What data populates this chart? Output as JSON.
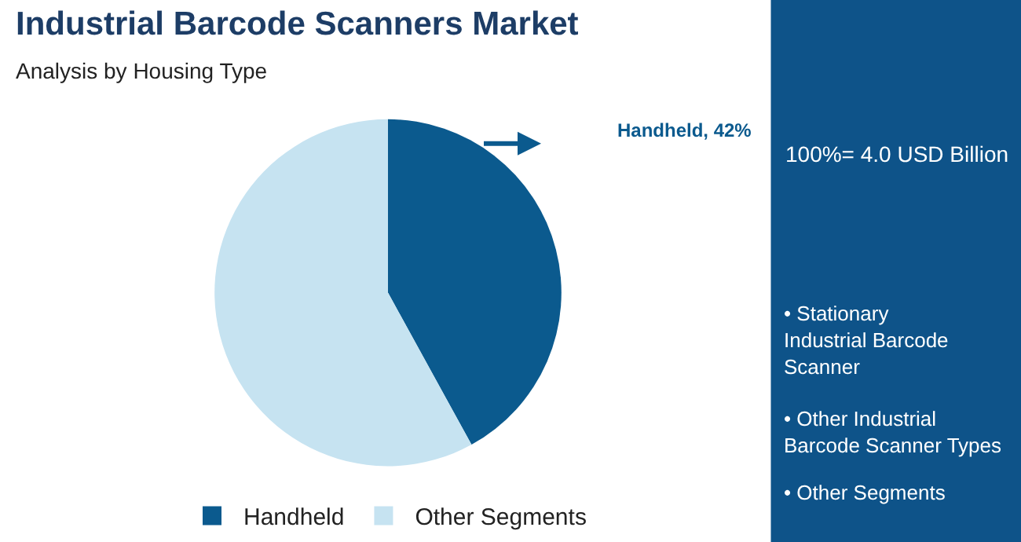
{
  "chart_data": {
    "type": "pie",
    "title": "Industrial Barcode Scanners Market",
    "subtitle": "Analysis by Housing Type",
    "categories": [
      "Handheld",
      "Other Segments"
    ],
    "values": [
      42,
      58
    ],
    "colors": [
      "#0b5a8e",
      "#c6e3f1"
    ],
    "legend": "bottom",
    "annotations": [
      "Handheld, 42%",
      "100%= 4.0 USD Billion",
      "• Stationary Industrial Barcode Scanner",
      "• Other Industrial Barcode Scanner Types",
      "• Other Segments"
    ]
  }
}
